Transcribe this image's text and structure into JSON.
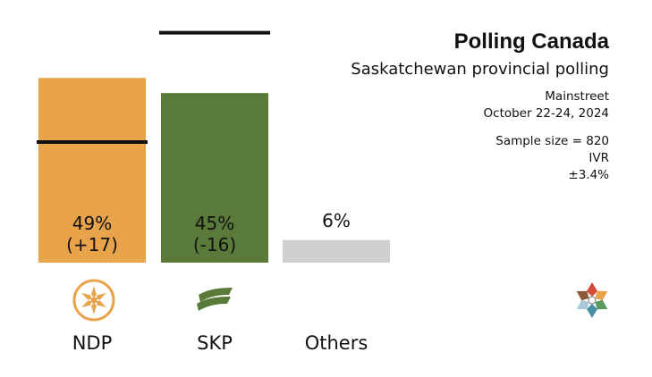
{
  "header": {
    "title": "Polling Canada",
    "subtitle": "Saskatchewan provincial polling"
  },
  "meta": {
    "pollster": "Mainstreet",
    "dates": "October 22-24, 2024",
    "sample_size": "Sample size = 820",
    "method": "IVR",
    "margin": "±3.4%"
  },
  "chart_data": {
    "type": "bar",
    "title": "Saskatchewan provincial polling",
    "categories": [
      "NDP",
      "SKP",
      "Others"
    ],
    "values": [
      49,
      45,
      6
    ],
    "changes": [
      "(+17)",
      "(-16)",
      ""
    ],
    "value_labels": [
      "49%",
      "45%",
      "6%"
    ],
    "previous_values": [
      32,
      61,
      null
    ],
    "ylim": [
      0,
      64
    ],
    "colors": [
      "#e8a34b",
      "#5a7a39",
      "#cfcfcf"
    ],
    "marker_color": "#111111"
  }
}
